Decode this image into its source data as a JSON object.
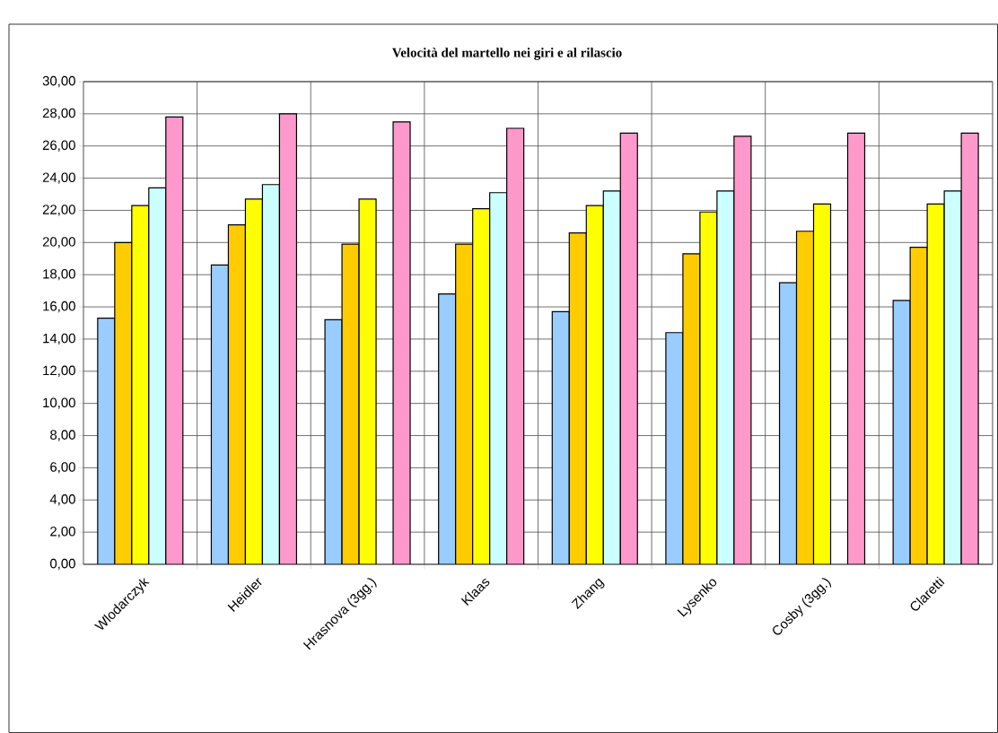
{
  "chart_data": {
    "type": "bar",
    "title": "Velocità del martello nei giri e al rilascio",
    "categories": [
      "Wlodarczyk",
      "Heidler",
      "Hrasnova (3gg.)",
      "Klaas",
      "Zhang",
      "Lysenko",
      "Cosby (3gg.)",
      "Claretti"
    ],
    "series": [
      {
        "color": "#99ccff",
        "values": [
          15.3,
          18.6,
          15.2,
          16.8,
          15.7,
          14.4,
          17.5,
          16.4
        ]
      },
      {
        "color": "#ffcc00",
        "values": [
          20.0,
          21.1,
          19.9,
          19.9,
          20.6,
          19.3,
          20.7,
          19.7
        ]
      },
      {
        "color": "#ffff00",
        "values": [
          22.3,
          22.7,
          22.7,
          22.1,
          22.3,
          21.9,
          22.4,
          22.4
        ]
      },
      {
        "color": "#ccffff",
        "values": [
          23.4,
          23.6,
          null,
          23.1,
          23.2,
          23.2,
          null,
          23.2
        ]
      },
      {
        "color": "#ff99cc",
        "values": [
          27.8,
          28.0,
          27.5,
          27.1,
          26.8,
          26.6,
          26.8,
          26.8
        ]
      }
    ],
    "ylim": [
      0,
      30
    ],
    "yticks": [
      {
        "value": 0,
        "label": "0,00"
      },
      {
        "value": 2,
        "label": "2,00"
      },
      {
        "value": 4,
        "label": "4,00"
      },
      {
        "value": 6,
        "label": "6,00"
      },
      {
        "value": 8,
        "label": "8,00"
      },
      {
        "value": 10,
        "label": "10,00"
      },
      {
        "value": 12,
        "label": "12,00"
      },
      {
        "value": 14,
        "label": "14,00"
      },
      {
        "value": 16,
        "label": "16,00"
      },
      {
        "value": 18,
        "label": "18,00"
      },
      {
        "value": 20,
        "label": "20,00"
      },
      {
        "value": 22,
        "label": "22,00"
      },
      {
        "value": 24,
        "label": "24,00"
      },
      {
        "value": 26,
        "label": "26,00"
      },
      {
        "value": 28,
        "label": "28,00"
      },
      {
        "value": 30,
        "label": "30,00"
      }
    ],
    "grid": true
  }
}
